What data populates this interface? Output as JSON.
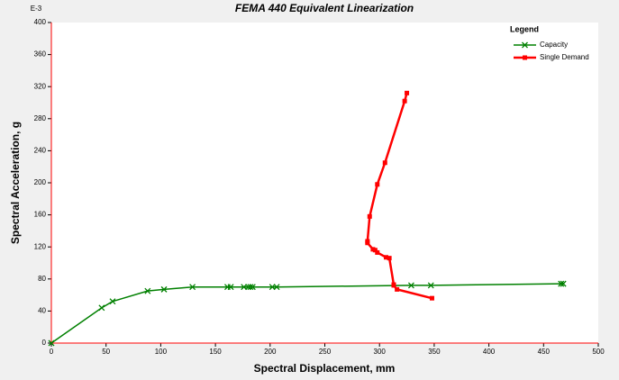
{
  "chart_data": {
    "type": "line",
    "title": "FEMA 440 Equivalent Linearization",
    "x_label": "Spectral Displacement, mm",
    "y_label": "Spectral Acceleration, g",
    "y_multiplier": "E-3",
    "legend_title": "Legend",
    "legend": "upper right",
    "xlim": [
      0,
      500
    ],
    "xticks": [
      0,
      50,
      100,
      150,
      200,
      250,
      300,
      350,
      400,
      450,
      500
    ],
    "ylim": [
      0,
      400
    ],
    "yticks": [
      0,
      40,
      80,
      120,
      160,
      200,
      240,
      280,
      320,
      360,
      400
    ],
    "series": [
      {
        "name": "Capacity",
        "color": "#008000",
        "marker": "x",
        "x": [
          0,
          46,
          56,
          88,
          103,
          129,
          161,
          164,
          176,
          180,
          182,
          184,
          202,
          206,
          329,
          347,
          466,
          468
        ],
        "values": [
          0,
          44,
          52,
          65,
          67,
          70,
          70,
          70,
          70,
          70,
          70,
          70,
          70,
          70,
          72,
          72,
          74,
          74
        ]
      },
      {
        "name": "Single Demand",
        "color": "#ff0000",
        "marker": "square",
        "x": [
          348,
          316,
          313,
          313,
          309,
          306,
          298,
          296,
          294,
          289,
          289,
          291,
          298,
          305,
          323,
          325
        ],
        "values": [
          56,
          67,
          72,
          73,
          106,
          107,
          113,
          116,
          117,
          125,
          127,
          158,
          198,
          225,
          302,
          312
        ]
      }
    ]
  }
}
